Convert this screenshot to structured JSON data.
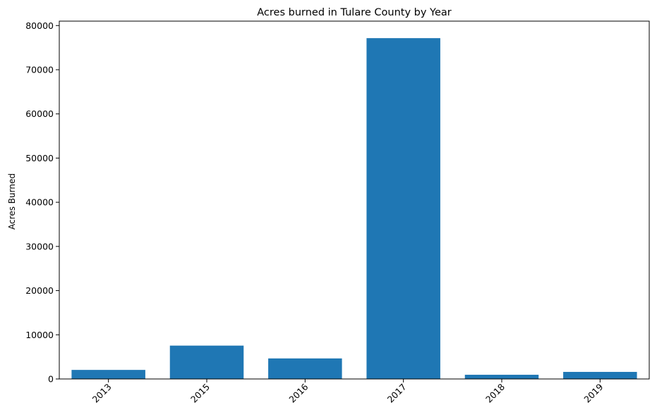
{
  "chart_data": {
    "type": "bar",
    "title": "Acres burned in Tulare County by Year",
    "xlabel": "",
    "ylabel": "Acres Burned",
    "categories": [
      "2013",
      "2015",
      "2016",
      "2017",
      "2018",
      "2019"
    ],
    "values": [
      2050,
      7550,
      4650,
      77150,
      950,
      1600
    ],
    "ylim": [
      0,
      81000
    ],
    "yticks": [
      0,
      10000,
      20000,
      30000,
      40000,
      50000,
      60000,
      70000,
      80000
    ],
    "bar_color": "#1f77b4",
    "grid": false,
    "legend": "none"
  }
}
